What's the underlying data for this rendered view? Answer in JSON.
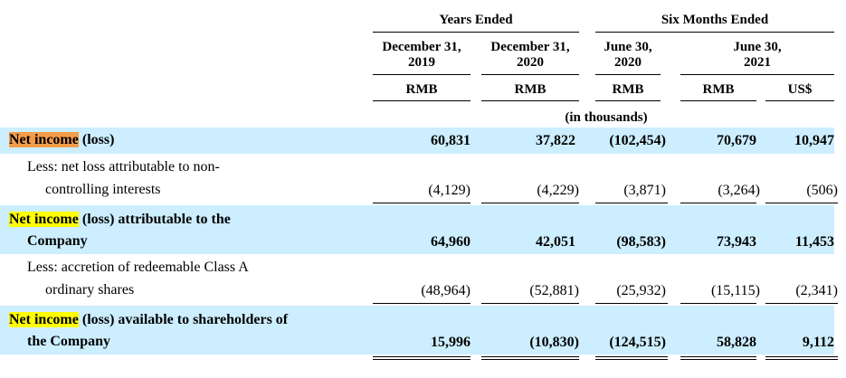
{
  "header": {
    "group1": "Years Ended",
    "group2": "Six Months Ended",
    "col1": "December 31,\n2019",
    "col2": "December 31,\n2020",
    "col3": "June 30,\n2020",
    "col45": "June 30,\n2021",
    "cur1": "RMB",
    "cur2": "RMB",
    "cur3": "RMB",
    "cur4": "RMB",
    "cur5": "US$",
    "units": "(in thousands)"
  },
  "rows": [
    {
      "label_hl": "Net income",
      "label_rest": " (loss)",
      "values": [
        "60,831",
        "37,822",
        "(102,454)",
        "70,679",
        "10,947"
      ]
    },
    {
      "label_line1": "Less: net loss attributable to non-",
      "label_line2": "controlling interests",
      "values": [
        "(4,129)",
        "(4,229)",
        "(3,871)",
        "(3,264)",
        "(506)"
      ]
    },
    {
      "label_hl": "Net income",
      "label_rest": " (loss) attributable to the",
      "label_line2": "Company",
      "values": [
        "64,960",
        "42,051",
        "(98,583)",
        "73,943",
        "11,453"
      ]
    },
    {
      "label_line1": "Less: accretion of redeemable Class A",
      "label_line2": "ordinary shares",
      "values": [
        "(48,964)",
        "(52,881)",
        "(25,932)",
        "(15,115)",
        "(2,341)"
      ]
    },
    {
      "label_hl": "Net income",
      "label_rest": " (loss) available to shareholders of",
      "label_line2": "the Company",
      "values": [
        "15,996",
        "(10,830)",
        "(124,515)",
        "58,828",
        "9,112"
      ]
    }
  ],
  "colors": {
    "row_shade": "#cceeff",
    "highlight_orange": "#f39c49",
    "highlight_yellow": "#ffff00"
  }
}
